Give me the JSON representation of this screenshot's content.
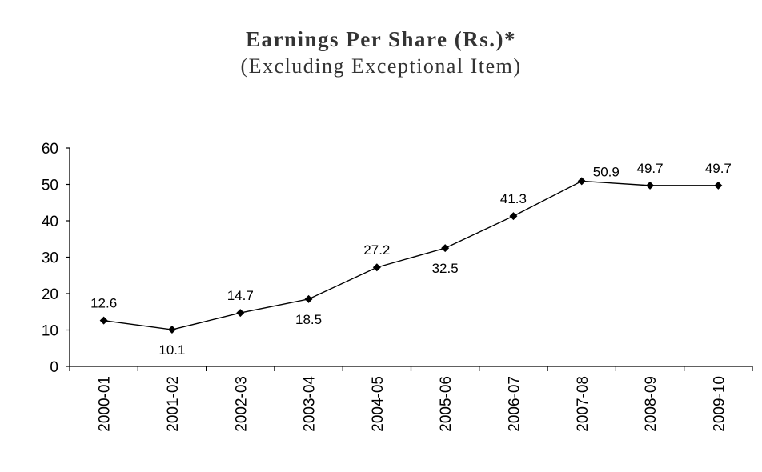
{
  "chart_data": {
    "type": "line",
    "title": "Earnings Per Share (Rs.)*",
    "subtitle": "(Excluding Exceptional Item)",
    "xlabel": "",
    "ylabel": "",
    "categories": [
      "2000-01",
      "2001-02",
      "2002-03",
      "2003-04",
      "2004-05",
      "2005-06",
      "2006-07",
      "2007-08",
      "2008-09",
      "2009-10"
    ],
    "series": [
      {
        "values": [
          12.6,
          10.1,
          14.7,
          18.5,
          27.2,
          32.5,
          41.3,
          50.9,
          49.7,
          49.7
        ],
        "data_labels": [
          "12.6",
          "10.1",
          "14.7",
          "18.5",
          "27.2",
          "32.5",
          "41.3",
          "50.9",
          "49.7",
          "49.7"
        ],
        "label_positions": [
          "above",
          "below",
          "above",
          "below",
          "above",
          "below",
          "above",
          "right",
          "above",
          "above"
        ],
        "color": "#000000",
        "marker": "diamond"
      }
    ],
    "ylim": [
      0,
      60
    ],
    "yticks": [
      0,
      10,
      20,
      30,
      40,
      50,
      60
    ],
    "grid": false,
    "legend": "none"
  }
}
